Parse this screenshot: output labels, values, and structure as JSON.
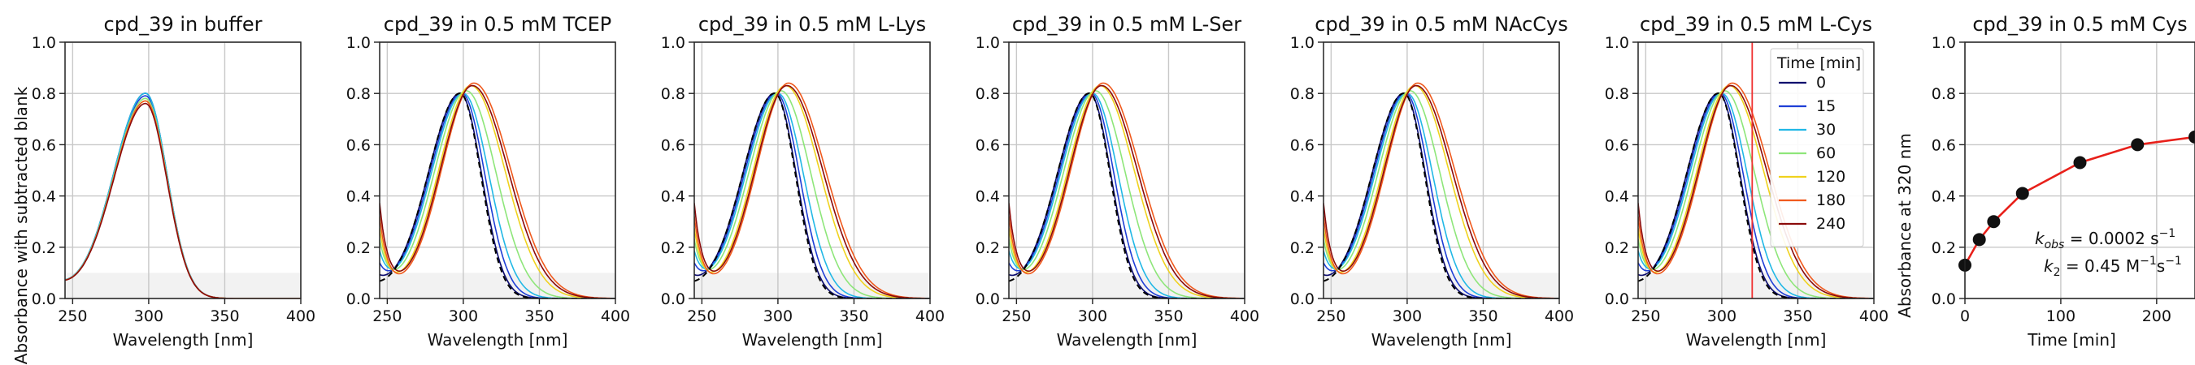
{
  "figure": {
    "ylabel_spectra": "Absorbance with subtracted blank",
    "xlabel_spectra": "Wavelength [nm]",
    "ylabel_kinetics": "Absorbance at 320 nm",
    "xlabel_kinetics": "Time [min]"
  },
  "legend": {
    "title": "Time [min]",
    "entries": [
      {
        "label": "0",
        "color": "#0b0b6e"
      },
      {
        "label": "15",
        "color": "#1f3fd6"
      },
      {
        "label": "30",
        "color": "#22b8e6"
      },
      {
        "label": "60",
        "color": "#8ee67a"
      },
      {
        "label": "120",
        "color": "#f0d21e"
      },
      {
        "label": "180",
        "color": "#f05a1e"
      },
      {
        "label": "240",
        "color": "#8b0b0b"
      }
    ]
  },
  "annotation": {
    "kobs": "k",
    "kobs_sub": "obs",
    "kobs_value": " = 0.0002 s",
    "kobs_exp": "−1",
    "k2": "k",
    "k2_sub": "2",
    "k2_value": " = 0.45 M",
    "k2_exp1": "−1",
    "k2_s": "s",
    "k2_exp2": "−1"
  },
  "chart_data": [
    {
      "type": "line",
      "title": "cpd_39 in buffer",
      "xlim": [
        245,
        400
      ],
      "ylim": [
        0,
        1.0
      ],
      "xticks": [
        "250",
        "300",
        "350",
        "400"
      ],
      "yticks": [
        "0.0",
        "0.2",
        "0.4",
        "0.6",
        "0.8",
        "1.0"
      ],
      "grid": true,
      "shaded_band": [
        0,
        0.1
      ],
      "series": [
        {
          "color": "#0b0b6e",
          "peak_x": 298,
          "peak_y": 0.8,
          "shift": 0
        },
        {
          "color": "#1f3fd6",
          "peak_x": 298,
          "peak_y": 0.79,
          "shift": 0
        },
        {
          "color": "#22b8e6",
          "peak_x": 298,
          "peak_y": 0.8,
          "shift": 0
        },
        {
          "color": "#8ee67a",
          "peak_x": 298,
          "peak_y": 0.78,
          "shift": 0
        },
        {
          "color": "#f0d21e",
          "peak_x": 298,
          "peak_y": 0.77,
          "shift": 0
        },
        {
          "color": "#f05a1e",
          "peak_x": 298,
          "peak_y": 0.77,
          "shift": 0
        },
        {
          "color": "#8b0b0b",
          "peak_x": 298,
          "peak_y": 0.76,
          "shift": 0
        }
      ]
    },
    {
      "type": "line",
      "title": "cpd_39 in 0.5 mM TCEP",
      "xlim": [
        245,
        400
      ],
      "ylim": [
        0,
        1.0
      ],
      "xticks": [
        "250",
        "300",
        "350",
        "400"
      ],
      "yticks": [
        "0.0",
        "0.2",
        "0.4",
        "0.6",
        "0.8",
        "1.0"
      ],
      "grid": true,
      "shaded_band": [
        0,
        0.1
      ],
      "reference_dashed": true,
      "series": [
        {
          "color": "#0b0b6e",
          "peak_x": 298,
          "peak_y": 0.8,
          "shift": 0
        },
        {
          "color": "#1f3fd6",
          "peak_x": 299,
          "peak_y": 0.8,
          "shift": 2
        },
        {
          "color": "#22b8e6",
          "peak_x": 300,
          "peak_y": 0.8,
          "shift": 5
        },
        {
          "color": "#8ee67a",
          "peak_x": 302,
          "peak_y": 0.81,
          "shift": 10
        },
        {
          "color": "#f0d21e",
          "peak_x": 305,
          "peak_y": 0.83,
          "shift": 15
        },
        {
          "color": "#f05a1e",
          "peak_x": 307,
          "peak_y": 0.84,
          "shift": 18
        },
        {
          "color": "#8b0b0b",
          "peak_x": 306,
          "peak_y": 0.83,
          "shift": 17
        }
      ]
    },
    {
      "type": "line",
      "title": "cpd_39 in 0.5 mM L-Lys",
      "xlim": [
        245,
        400
      ],
      "ylim": [
        0,
        1.0
      ],
      "xticks": [
        "250",
        "300",
        "350",
        "400"
      ],
      "yticks": [
        "0.0",
        "0.2",
        "0.4",
        "0.6",
        "0.8",
        "1.0"
      ],
      "grid": true,
      "shaded_band": [
        0,
        0.1
      ],
      "reference_dashed": true,
      "series": [
        {
          "color": "#0b0b6e",
          "peak_x": 298,
          "peak_y": 0.8,
          "shift": 0
        },
        {
          "color": "#1f3fd6",
          "peak_x": 299,
          "peak_y": 0.8,
          "shift": 2
        },
        {
          "color": "#22b8e6",
          "peak_x": 300,
          "peak_y": 0.8,
          "shift": 5
        },
        {
          "color": "#8ee67a",
          "peak_x": 302,
          "peak_y": 0.81,
          "shift": 10
        },
        {
          "color": "#f0d21e",
          "peak_x": 305,
          "peak_y": 0.83,
          "shift": 15
        },
        {
          "color": "#f05a1e",
          "peak_x": 307,
          "peak_y": 0.84,
          "shift": 18
        },
        {
          "color": "#8b0b0b",
          "peak_x": 306,
          "peak_y": 0.83,
          "shift": 17
        }
      ]
    },
    {
      "type": "line",
      "title": "cpd_39 in 0.5 mM L-Ser",
      "xlim": [
        245,
        400
      ],
      "ylim": [
        0,
        1.0
      ],
      "xticks": [
        "250",
        "300",
        "350",
        "400"
      ],
      "yticks": [
        "0.0",
        "0.2",
        "0.4",
        "0.6",
        "0.8",
        "1.0"
      ],
      "grid": true,
      "shaded_band": [
        0,
        0.1
      ],
      "reference_dashed": true,
      "series": [
        {
          "color": "#0b0b6e",
          "peak_x": 298,
          "peak_y": 0.8,
          "shift": 0
        },
        {
          "color": "#1f3fd6",
          "peak_x": 299,
          "peak_y": 0.8,
          "shift": 2
        },
        {
          "color": "#22b8e6",
          "peak_x": 300,
          "peak_y": 0.8,
          "shift": 5
        },
        {
          "color": "#8ee67a",
          "peak_x": 302,
          "peak_y": 0.81,
          "shift": 10
        },
        {
          "color": "#f0d21e",
          "peak_x": 305,
          "peak_y": 0.83,
          "shift": 15
        },
        {
          "color": "#f05a1e",
          "peak_x": 307,
          "peak_y": 0.84,
          "shift": 18
        },
        {
          "color": "#8b0b0b",
          "peak_x": 306,
          "peak_y": 0.83,
          "shift": 17
        }
      ]
    },
    {
      "type": "line",
      "title": "cpd_39 in 0.5 mM NAcCys",
      "xlim": [
        245,
        400
      ],
      "ylim": [
        0,
        1.0
      ],
      "xticks": [
        "250",
        "300",
        "350",
        "400"
      ],
      "yticks": [
        "0.0",
        "0.2",
        "0.4",
        "0.6",
        "0.8",
        "1.0"
      ],
      "grid": true,
      "shaded_band": [
        0,
        0.1
      ],
      "reference_dashed": true,
      "series": [
        {
          "color": "#0b0b6e",
          "peak_x": 298,
          "peak_y": 0.8,
          "shift": 0
        },
        {
          "color": "#1f3fd6",
          "peak_x": 299,
          "peak_y": 0.8,
          "shift": 2
        },
        {
          "color": "#22b8e6",
          "peak_x": 300,
          "peak_y": 0.8,
          "shift": 5
        },
        {
          "color": "#8ee67a",
          "peak_x": 302,
          "peak_y": 0.81,
          "shift": 10
        },
        {
          "color": "#f0d21e",
          "peak_x": 305,
          "peak_y": 0.83,
          "shift": 15
        },
        {
          "color": "#f05a1e",
          "peak_x": 307,
          "peak_y": 0.84,
          "shift": 18
        },
        {
          "color": "#8b0b0b",
          "peak_x": 306,
          "peak_y": 0.83,
          "shift": 17
        }
      ]
    },
    {
      "type": "line",
      "title": "cpd_39 in 0.5 mM L-Cys",
      "xlim": [
        245,
        400
      ],
      "ylim": [
        0,
        1.0
      ],
      "xticks": [
        "250",
        "300",
        "350",
        "400"
      ],
      "yticks": [
        "0.0",
        "0.2",
        "0.4",
        "0.6",
        "0.8",
        "1.0"
      ],
      "grid": true,
      "shaded_band": [
        0,
        0.1
      ],
      "reference_dashed": true,
      "vline_x": 320,
      "vline_color": "#f03030",
      "legend": "top-right",
      "series": [
        {
          "color": "#0b0b6e",
          "peak_x": 298,
          "peak_y": 0.8,
          "shift": 0
        },
        {
          "color": "#1f3fd6",
          "peak_x": 299,
          "peak_y": 0.8,
          "shift": 2
        },
        {
          "color": "#22b8e6",
          "peak_x": 300,
          "peak_y": 0.8,
          "shift": 5
        },
        {
          "color": "#8ee67a",
          "peak_x": 302,
          "peak_y": 0.81,
          "shift": 10
        },
        {
          "color": "#f0d21e",
          "peak_x": 305,
          "peak_y": 0.83,
          "shift": 15
        },
        {
          "color": "#f05a1e",
          "peak_x": 307,
          "peak_y": 0.84,
          "shift": 18
        },
        {
          "color": "#8b0b0b",
          "peak_x": 306,
          "peak_y": 0.83,
          "shift": 17
        }
      ]
    },
    {
      "type": "scatter",
      "title": "cpd_39 in 0.5 mM Cys",
      "xlim": [
        0,
        240
      ],
      "ylim": [
        0,
        1.0
      ],
      "xticks": [
        "0",
        "100",
        "200"
      ],
      "yticks": [
        "0.0",
        "0.2",
        "0.4",
        "0.6",
        "0.8",
        "1.0"
      ],
      "grid": true,
      "fit_color": "#e8201a",
      "points": [
        {
          "x": 0,
          "y": 0.13
        },
        {
          "x": 15,
          "y": 0.23
        },
        {
          "x": 30,
          "y": 0.3
        },
        {
          "x": 60,
          "y": 0.41
        },
        {
          "x": 120,
          "y": 0.53
        },
        {
          "x": 180,
          "y": 0.6
        },
        {
          "x": 240,
          "y": 0.63
        }
      ]
    }
  ]
}
